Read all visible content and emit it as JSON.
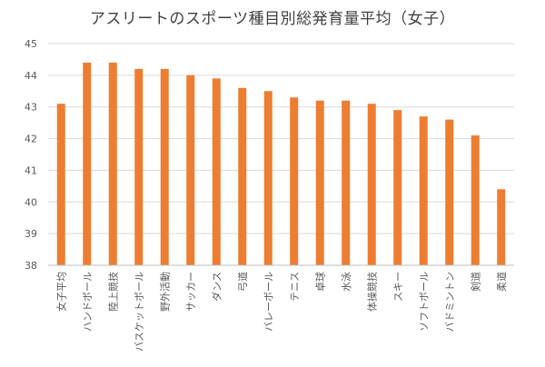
{
  "chart_data": {
    "type": "bar",
    "title": "アスリートのスポーツ種目別総発育量平均（女子）",
    "categories": [
      "女子平均",
      "ハンドボール",
      "陸上競技",
      "バスケットボール",
      "野外活動",
      "サッカー",
      "ダンス",
      "弓道",
      "バレーボール",
      "テニス",
      "卓球",
      "水泳",
      "体操競技",
      "スキー",
      "ソフトボール",
      "バドミントン",
      "剣道",
      "柔道"
    ],
    "values": [
      43.1,
      44.4,
      44.4,
      44.2,
      44.2,
      44.0,
      43.9,
      43.6,
      43.5,
      43.3,
      43.2,
      43.2,
      43.1,
      42.9,
      42.7,
      42.6,
      42.1,
      40.4
    ],
    "ylim": [
      38,
      45
    ],
    "yticks": [
      38,
      39,
      40,
      41,
      42,
      43,
      44,
      45
    ],
    "xlabel": "",
    "ylabel": "",
    "grid": true,
    "colors": {
      "bar": "#ED7D31",
      "grid": "#D9D9D9",
      "axis": "#BFBFBF",
      "tick_text": "#595959"
    }
  }
}
